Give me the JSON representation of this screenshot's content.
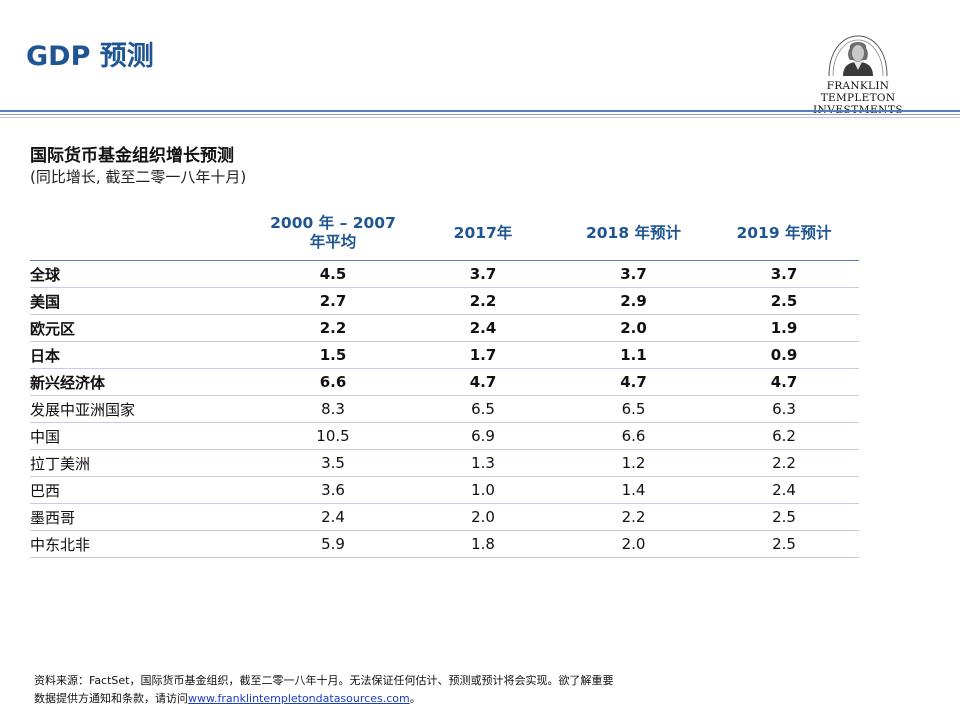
{
  "header": {
    "title": "GDP 预测"
  },
  "logo": {
    "line1": "FRANKLIN TEMPLETON",
    "line2": "INVESTMENTS",
    "icon": "franklin-portrait-icon",
    "color": "#1f5590"
  },
  "table_section": {
    "title": "国际货币基金组织增长预测",
    "note": "(同比增长, 截至二零一八年十月)"
  },
  "table": {
    "columns": [
      {
        "line1": "2000 年 – 2007",
        "line2": "年平均"
      },
      {
        "line1": "2017年",
        "line2": ""
      },
      {
        "line1": "2018 年预计",
        "line2": ""
      },
      {
        "line1": "2019 年预计",
        "line2": ""
      }
    ],
    "rows": [
      {
        "label": "全球",
        "values": [
          "4.5",
          "3.7",
          "3.7",
          "3.7"
        ]
      },
      {
        "label": "美国",
        "values": [
          "2.7",
          "2.2",
          "2.9",
          "2.5"
        ]
      },
      {
        "label": "欧元区",
        "values": [
          "2.2",
          "2.4",
          "2.0",
          "1.9"
        ]
      },
      {
        "label": "日本",
        "values": [
          "1.5",
          "1.7",
          "1.1",
          "0.9"
        ]
      },
      {
        "label": "新兴经济体",
        "values": [
          "6.6",
          "4.7",
          "4.7",
          "4.7"
        ]
      },
      {
        "label": "发展中亚洲国家",
        "values": [
          "8.3",
          "6.5",
          "6.5",
          "6.3"
        ]
      },
      {
        "label": "中国",
        "values": [
          "10.5",
          "6.9",
          "6.6",
          "6.2"
        ]
      },
      {
        "label": "拉丁美洲",
        "values": [
          "3.5",
          "1.3",
          "1.2",
          "2.2"
        ]
      },
      {
        "label": "巴西",
        "values": [
          "3.6",
          "1.0",
          "1.4",
          "2.4"
        ]
      },
      {
        "label": "墨西哥",
        "values": [
          "2.4",
          "2.0",
          "2.2",
          "2.5"
        ]
      },
      {
        "label": "中东北非",
        "values": [
          "5.9",
          "1.8",
          "2.0",
          "2.5"
        ]
      }
    ]
  },
  "footer": {
    "line1": "资料来源：FactSet，国际货币基金组织，截至二零一八年十月。无法保证任何估计、预测或预计将会实现。欲了解重要",
    "line2_prefix": "数据提供方通知和条款，请访问",
    "link": "www.franklintempletondatasources.com",
    "line2_suffix": "。"
  }
}
